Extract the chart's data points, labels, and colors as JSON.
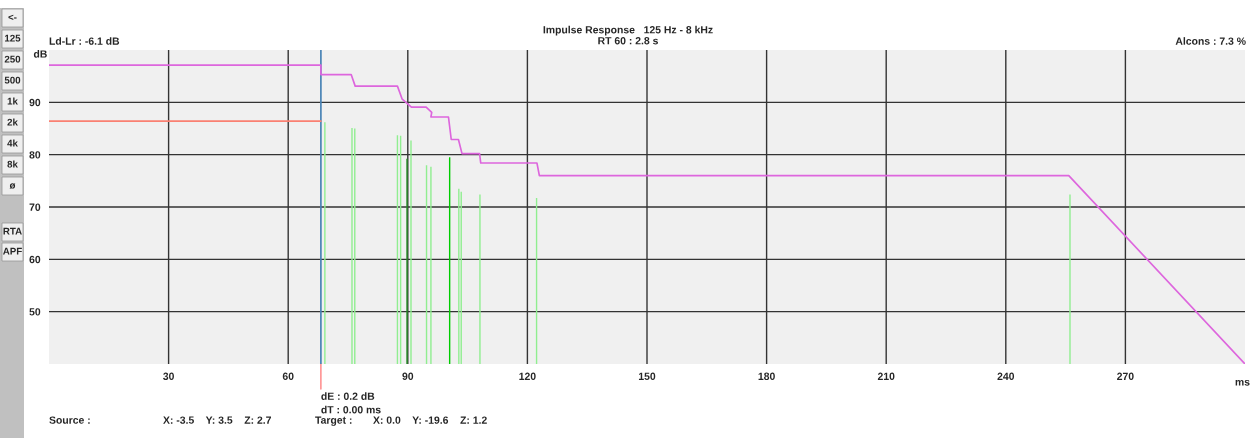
{
  "chart_data": {
    "type": "line",
    "title": "Impulse Response   125 Hz - 8 kHz",
    "subtitle": "RT 60 : 2.8 s",
    "xlabel": "ms",
    "ylabel": "dB",
    "xlim": [
      0,
      300
    ],
    "xticks": [
      30,
      60,
      90,
      120,
      150,
      180,
      210,
      240,
      270
    ],
    "ylim": [
      40,
      100
    ],
    "yticks": [
      50,
      60,
      70,
      80,
      90
    ],
    "grid": true,
    "series": [
      {
        "type": "bar",
        "x": [
          69.2,
          76.0,
          76.7,
          87.4,
          88.2,
          89.8,
          90.8,
          94.7,
          95.8,
          100.5,
          102.8,
          103.4,
          108.1,
          122.3,
          256.1
        ],
        "values": [
          86.2,
          85.1,
          85.0,
          83.7,
          83.6,
          79.2,
          82.7,
          78.0,
          77.7,
          79.5,
          73.5,
          72.9,
          72.4,
          71.7,
          72.4
        ],
        "colors": [
          "#90ee90",
          "#90ee90",
          "#90ee90",
          "#90ee90",
          "#90ee90",
          "#228b22",
          "#90ee90",
          "#90ee90",
          "#90ee90",
          "#00cc00",
          "#90ee90",
          "#90ee90",
          "#90ee90",
          "#90ee90",
          "#90ee90"
        ]
      },
      {
        "type": "line",
        "color": "#fa8072",
        "x": [
          0,
          68.2
        ],
        "values": [
          86.4,
          86.4
        ]
      },
      {
        "color": "#dd66dd",
        "x": [
          0,
          68.2,
          68.2,
          75.8,
          76.8,
          87.4,
          88.6,
          90.9,
          94.6,
          96.0,
          95.8,
          100.2,
          100.9,
          102.7,
          103.6,
          108.0,
          108.3,
          122.4,
          123.0,
          255.8,
          300
        ],
        "values": [
          97.1,
          97.1,
          95.3,
          95.3,
          93.1,
          93.1,
          90.6,
          89.1,
          89.1,
          88.1,
          87.2,
          87.2,
          82.9,
          82.9,
          80.2,
          80.2,
          78.4,
          78.4,
          76.0,
          76.0,
          40
        ]
      }
    ],
    "ref_lines": [
      {
        "axis": "x",
        "value": 68.2,
        "color": "#4682b4"
      }
    ],
    "annotations": [
      "dE : 0.2 dB\ndT : 0.00 ms",
      "Ld-Lr : -6.1 dB",
      "Alcons : 7.3 %",
      "Source :",
      "X: -3.5    Y: 3.5    Z: 2.7",
      "Target :",
      "X: 0.0    Y: -19.6    Z: 1.2",
      "<-",
      "125",
      "250",
      "500",
      "1k",
      "2k",
      "4k",
      "8k",
      "ø",
      "RTA",
      "APF"
    ]
  }
}
